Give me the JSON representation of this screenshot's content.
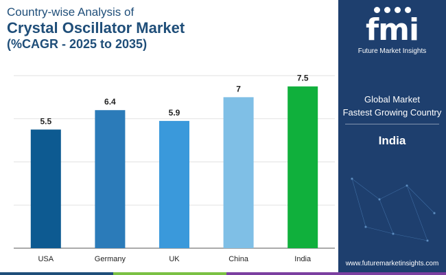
{
  "title": {
    "line1": "Country-wise Analysis of",
    "line2": "Crystal Oscillator Market",
    "line3": "(%CAGR - 2025 to 2035)"
  },
  "chart_data": {
    "type": "bar",
    "categories": [
      "USA",
      "Germany",
      "UK",
      "China",
      "India"
    ],
    "values": [
      5.5,
      6.4,
      5.9,
      7,
      7.5
    ],
    "value_labels": [
      "5.5",
      "6.4",
      "5.9",
      "7",
      "7.5"
    ],
    "colors": [
      "#0d5a91",
      "#2b7bb9",
      "#3a99db",
      "#7fbfe6",
      "#10b03c"
    ],
    "ylim": [
      0,
      8
    ],
    "grid": true,
    "legend": "none"
  },
  "panel": {
    "logo_mark": "fmi",
    "logo_text": "Future Market Insights",
    "global_market": "Global Market",
    "fastest_growing": "Fastest Growing Country",
    "country": "India",
    "website": "www.futuremarketinsights.com"
  },
  "colors": {
    "title": "#1f4e79",
    "panel_bg": "#1e3f6e",
    "grid": "#d9d9d9",
    "strip": [
      "#1f4e79",
      "#7ac143",
      "#7b3fa0"
    ]
  }
}
